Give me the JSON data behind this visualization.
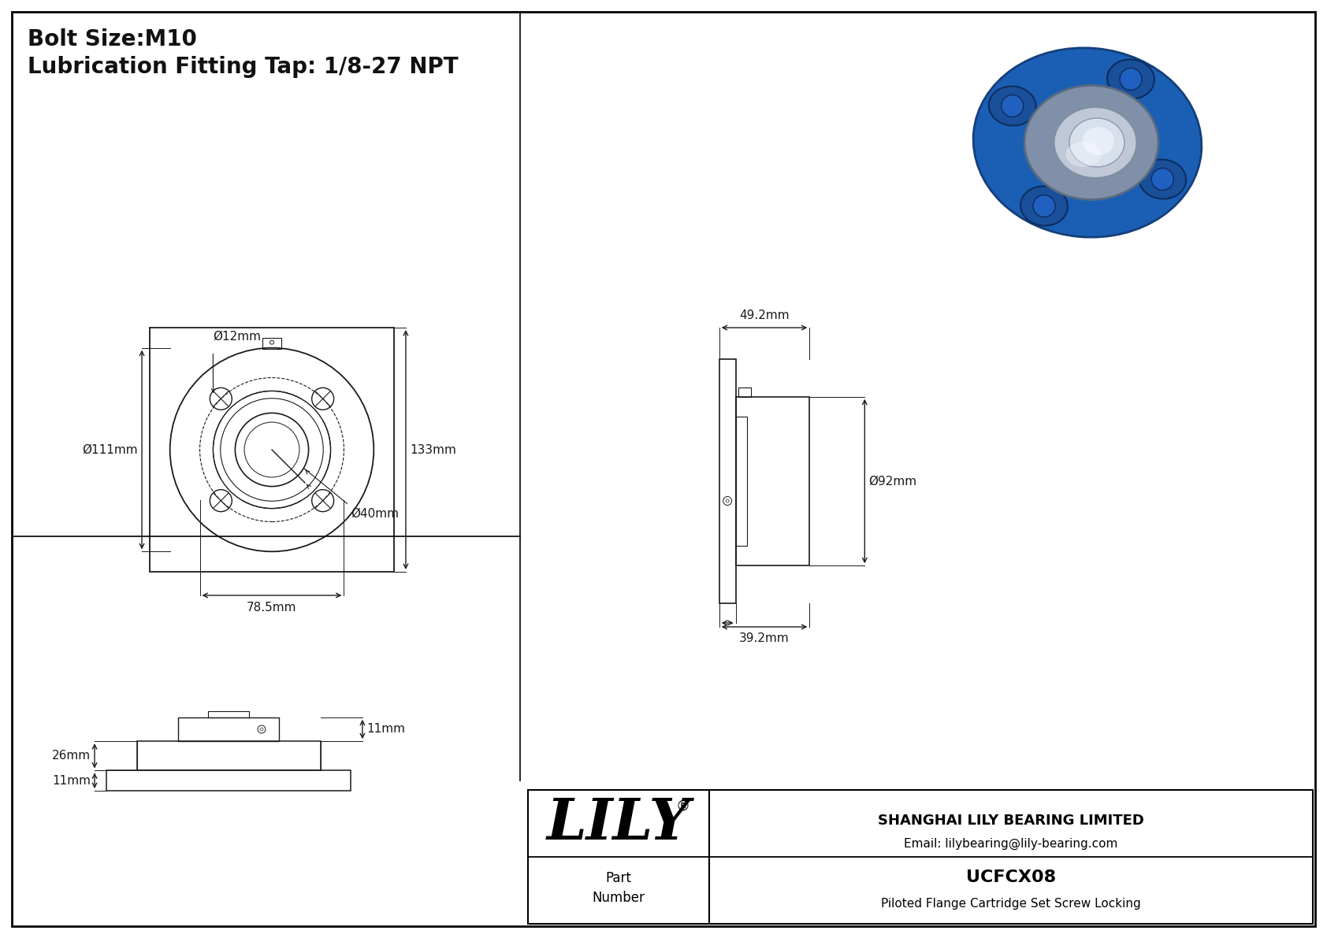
{
  "bg_color": "#ffffff",
  "border_color": "#000000",
  "line_color": "#1a1a1a",
  "dim_color": "#1a1a1a",
  "title_line1": "Bolt Size:M10",
  "title_line2": "Lubrication Fitting Tap: 1/8-27 NPT",
  "dims": {
    "d12": "Ø12mm",
    "d111": "Ø111mm",
    "d133": "133mm",
    "d78": "78.5mm",
    "d40": "Ø40mm",
    "d492": "49.2mm",
    "d92": "Ø92mm",
    "d392": "39.2mm",
    "d26": "26mm",
    "d11a": "11mm",
    "d11b": "11mm"
  },
  "part_number": "UCFCX08",
  "part_desc": "Piloted Flange Cartridge Set Screw Locking",
  "company": "SHANGHAI LILY BEARING LIMITED",
  "email": "Email: lilybearing@lily-bearing.com",
  "lily_text": "LILY",
  "reg_mark": "®"
}
